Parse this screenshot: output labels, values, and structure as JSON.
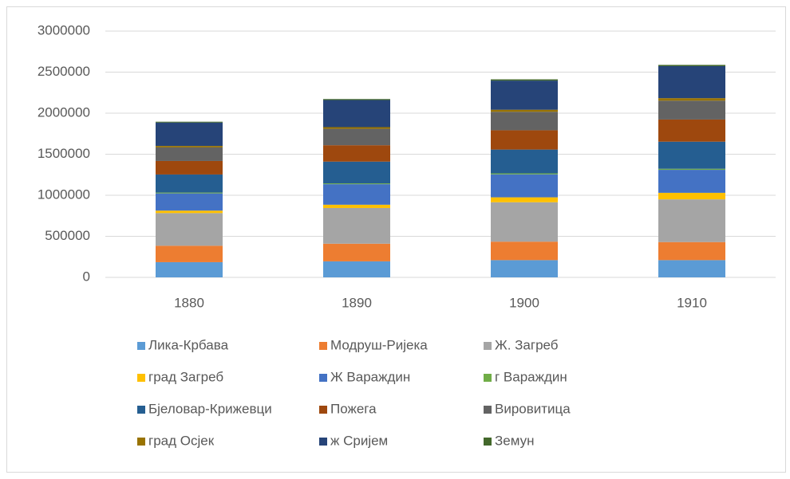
{
  "chart_data": {
    "type": "stacked_bar",
    "categories": [
      "1880",
      "1890",
      "1900",
      "1910"
    ],
    "series": [
      {
        "name": "Лика-Крбава",
        "color": "#5b9bd5",
        "values": [
          185000,
          195000,
          210000,
          210000
        ]
      },
      {
        "name": "Модруш-Ријека",
        "color": "#ed7d31",
        "values": [
          200000,
          215000,
          225000,
          220000
        ]
      },
      {
        "name": "Ж. Загреб",
        "color": "#a5a5a5",
        "values": [
          398000,
          435000,
          480000,
          520000
        ]
      },
      {
        "name": "град Загреб",
        "color": "#ffc000",
        "values": [
          30000,
          40000,
          60000,
          80000
        ]
      },
      {
        "name": "Ж Вараждин",
        "color": "#4472c4",
        "values": [
          210000,
          250000,
          280000,
          280000
        ]
      },
      {
        "name": "г Вараждин",
        "color": "#70ad47",
        "values": [
          10000,
          10000,
          12000,
          13000
        ]
      },
      {
        "name": "Бјеловар-Крижевци",
        "color": "#255e91",
        "values": [
          220000,
          265000,
          290000,
          330000
        ]
      },
      {
        "name": "Пожега",
        "color": "#9e480e",
        "values": [
          165000,
          200000,
          235000,
          270000
        ]
      },
      {
        "name": "Вировитица",
        "color": "#636363",
        "values": [
          165000,
          200000,
          225000,
          230000
        ]
      },
      {
        "name": "град Осјек",
        "color": "#997300",
        "values": [
          18000,
          20000,
          25000,
          30000
        ]
      },
      {
        "name": "ж Сријем",
        "color": "#264478",
        "values": [
          285000,
          330000,
          355000,
          390000
        ]
      },
      {
        "name": "Земун",
        "color": "#43682b",
        "values": [
          10000,
          12000,
          15000,
          15000
        ]
      }
    ],
    "ylim": [
      0,
      3000000
    ],
    "yticks": [
      0,
      500000,
      1000000,
      1500000,
      2000000,
      2500000,
      3000000
    ],
    "grid": true,
    "legend": "bottom"
  }
}
